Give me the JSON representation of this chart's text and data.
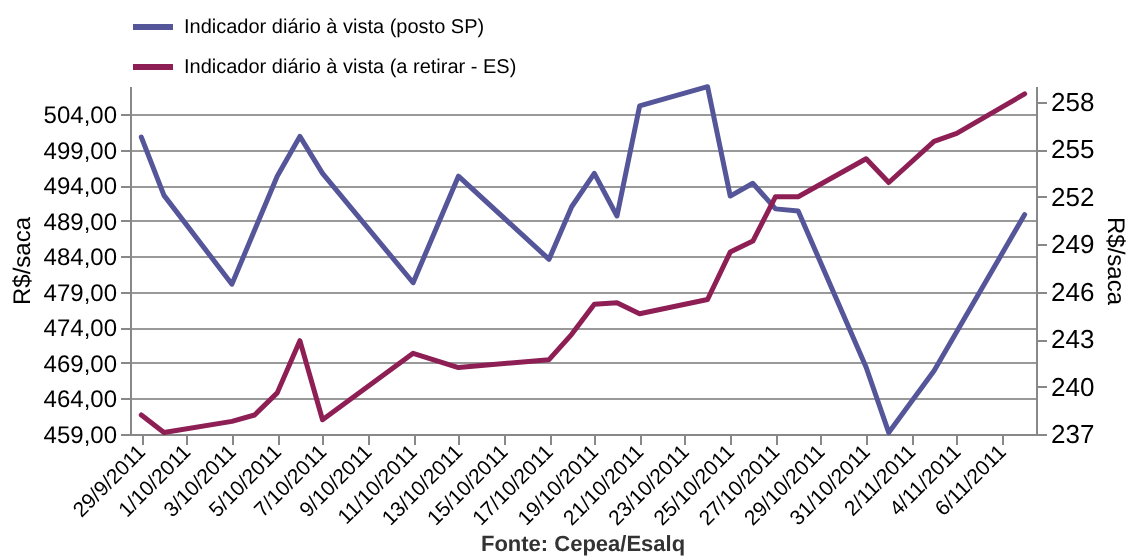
{
  "chart_data": {
    "type": "line",
    "ylabel": "R$/saca",
    "y2label": "R$/saca",
    "annotations": [
      "Fonte: Cepea/Esalq"
    ],
    "x": [
      "2011-09-29",
      "2011-09-30",
      "2011-10-03",
      "2011-10-04",
      "2011-10-05",
      "2011-10-06",
      "2011-10-07",
      "2011-10-11",
      "2011-10-13",
      "2011-10-17",
      "2011-10-18",
      "2011-10-19",
      "2011-10-20",
      "2011-10-21",
      "2011-10-24",
      "2011-10-25",
      "2011-10-26",
      "2011-10-27",
      "2011-10-28",
      "2011-10-31",
      "2011-11-01",
      "2011-11-03",
      "2011-11-04",
      "2011-11-07"
    ],
    "series": [
      {
        "name": "Indicador diário à vista (posto SP)",
        "color": "#55559a",
        "values": [
          500.8,
          492.6,
          480.1,
          null,
          495.3,
          500.9,
          495.7,
          480.3,
          495.3,
          483.6,
          491.0,
          495.7,
          489.7,
          505.2,
          507.9,
          492.5,
          494.3,
          490.7,
          490.4,
          468.4,
          459.2,
          467.9,
          null,
          489.9
        ]
      },
      {
        "name": "Indicador diário à vista (a retirar - ES)",
        "color": "#8e1f55",
        "axis": "y2",
        "values": [
          238.2,
          237.1,
          237.8,
          238.2,
          239.6,
          242.9,
          237.9,
          242.1,
          241.2,
          241.7,
          243.3,
          245.2,
          245.3,
          244.6,
          245.5,
          248.5,
          249.2,
          252.0,
          252.0,
          254.4,
          252.9,
          255.5,
          256.0,
          258.5
        ]
      }
    ],
    "xlim": [
      "2011-09-28T12:00",
      "2011-11-07T12:00"
    ],
    "xticks": [
      {
        "value": "2011-09-29",
        "label": "29/9/2011"
      },
      {
        "value": "2011-10-01",
        "label": "1/10/2011"
      },
      {
        "value": "2011-10-03",
        "label": "3/10/2011"
      },
      {
        "value": "2011-10-05",
        "label": "5/10/2011"
      },
      {
        "value": "2011-10-07",
        "label": "7/10/2011"
      },
      {
        "value": "2011-10-09",
        "label": "9/10/2011"
      },
      {
        "value": "2011-10-11",
        "label": "11/10/2011"
      },
      {
        "value": "2011-10-13",
        "label": "13/10/2011"
      },
      {
        "value": "2011-10-15",
        "label": "15/10/2011"
      },
      {
        "value": "2011-10-17",
        "label": "17/10/2011"
      },
      {
        "value": "2011-10-19",
        "label": "19/10/2011"
      },
      {
        "value": "2011-10-21",
        "label": "21/10/2011"
      },
      {
        "value": "2011-10-23",
        "label": "23/10/2011"
      },
      {
        "value": "2011-10-25",
        "label": "25/10/2011"
      },
      {
        "value": "2011-10-27",
        "label": "27/10/2011"
      },
      {
        "value": "2011-10-29",
        "label": "29/10/2011"
      },
      {
        "value": "2011-10-31",
        "label": "31/10/2011"
      },
      {
        "value": "2011-11-02",
        "label": "2/11/2011"
      },
      {
        "value": "2011-11-04",
        "label": "4/11/2011"
      },
      {
        "value": "2011-11-06",
        "label": "6/11/2011"
      }
    ],
    "ylim": [
      459,
      508
    ],
    "yticks": [
      {
        "value": 459,
        "label": "459,00"
      },
      {
        "value": 464,
        "label": "464,00"
      },
      {
        "value": 469,
        "label": "469,00"
      },
      {
        "value": 474,
        "label": "474,00"
      },
      {
        "value": 479,
        "label": "479,00"
      },
      {
        "value": 484,
        "label": "484,00"
      },
      {
        "value": 489,
        "label": "489,00"
      },
      {
        "value": 494,
        "label": "494,00"
      },
      {
        "value": 499,
        "label": "499,00"
      },
      {
        "value": 504,
        "label": "504,00"
      }
    ],
    "y2lim": [
      237,
      259
    ],
    "y2ticks": [
      237,
      240,
      243,
      246,
      249,
      252,
      255,
      258
    ],
    "grid": "y",
    "legend": "top",
    "marker": "none",
    "line_style": "solid"
  }
}
